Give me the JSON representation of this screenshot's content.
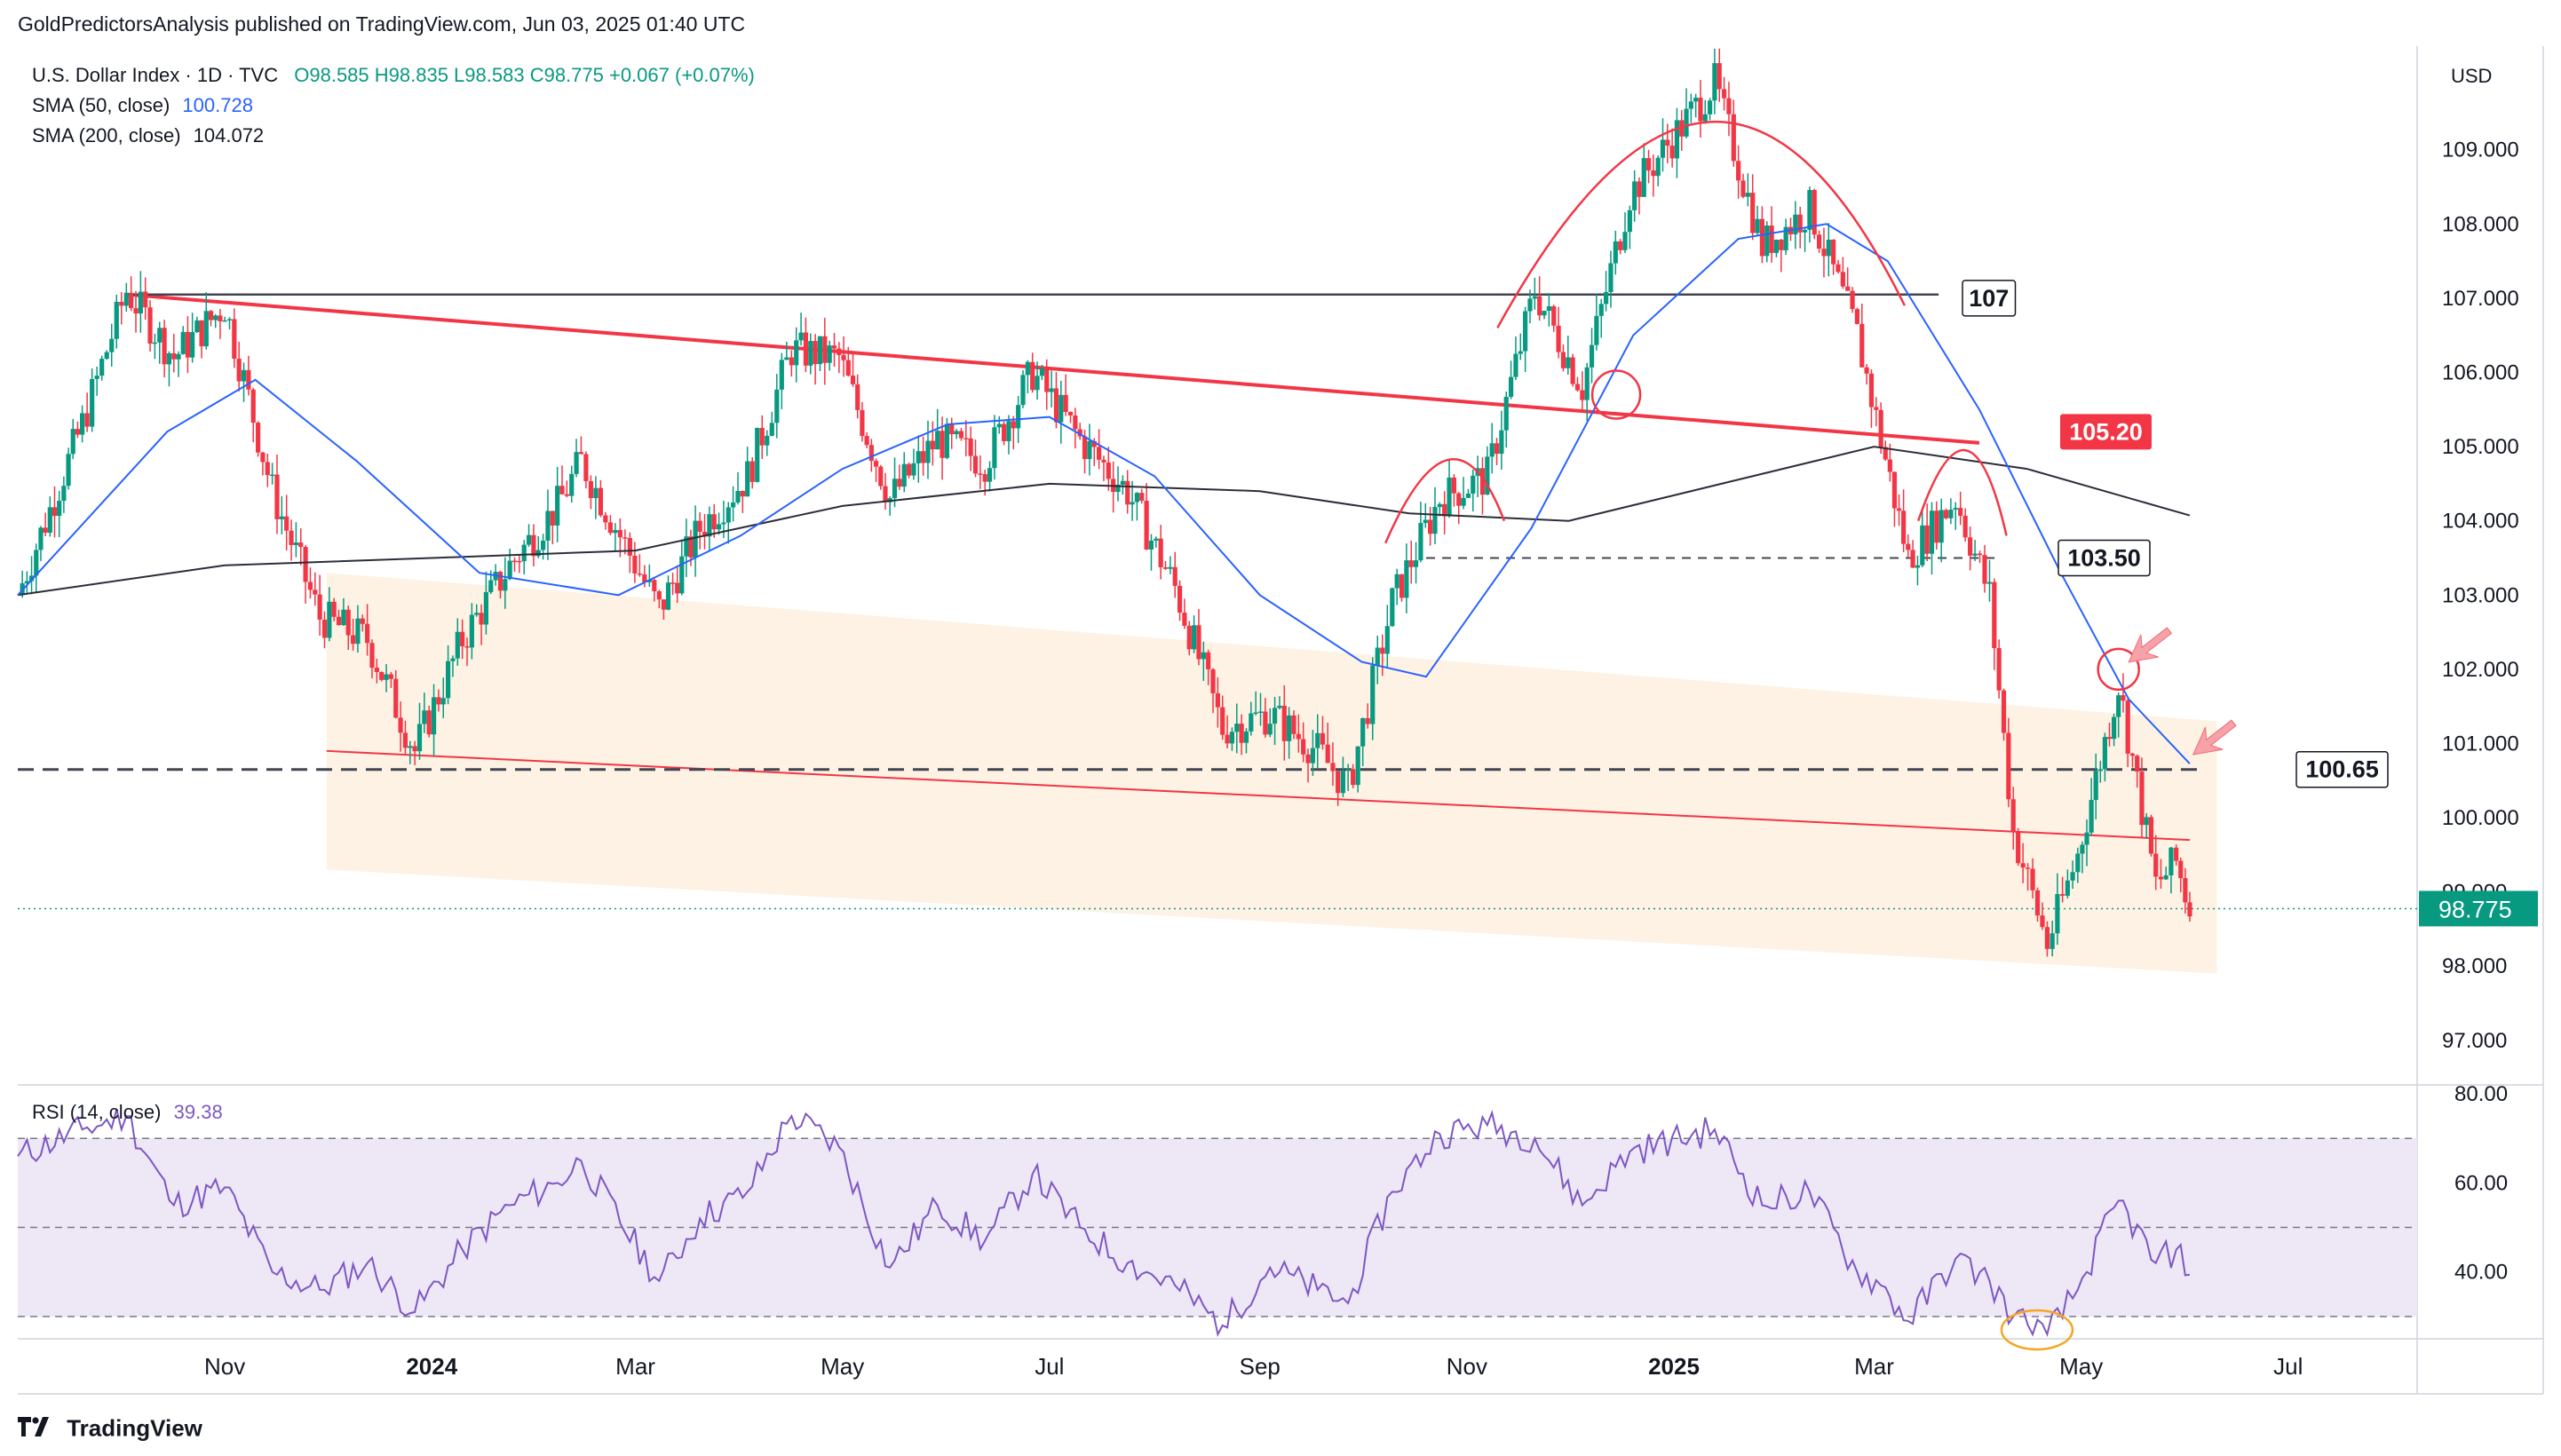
{
  "publisher_line": "GoldPredictorsAnalysis published on TradingView.com, Jun 03, 2025 01:40 UTC",
  "legend": {
    "symbol": "U.S. Dollar Index · 1D · TVC",
    "ohlc": "O98.585  H98.835  L98.583  C98.775  +0.067 (+0.07%)",
    "sma50_label": "SMA (50, close)",
    "sma50_value": "100.728",
    "sma200_label": "SMA (200, close)",
    "sma200_value": "104.072"
  },
  "rsi_legend": {
    "label": "RSI (14, close)",
    "value": "39.38"
  },
  "footer": {
    "brand": "TradingView",
    "logo_icon": "tradingview-logo-icon"
  },
  "colors": {
    "up": "#089981",
    "down": "#f23645",
    "sma50": "#2962ff",
    "sma200": "#2a2e39",
    "rsi": "#7e57c2",
    "trend_red": "#f23645",
    "channel": "#fdf1e1",
    "rsi_band": "#ede7f6"
  },
  "chart_data": [
    {
      "type": "candlestick",
      "title": "U.S. Dollar Index · 1D · TVC",
      "currency": "USD",
      "ylim": [
        96.4,
        110.3
      ],
      "yticks": [
        "109.000",
        "108.000",
        "107.000",
        "106.000",
        "105.000",
        "104.000",
        "103.000",
        "102.000",
        "101.000",
        "100.000",
        "99.000",
        "98.000",
        "97.000"
      ],
      "x_ticks": [
        {
          "label": "Nov",
          "date": "2023-11-01",
          "bold": false
        },
        {
          "label": "2024",
          "date": "2024-01-01",
          "bold": true
        },
        {
          "label": "Mar",
          "date": "2024-03-01",
          "bold": false
        },
        {
          "label": "May",
          "date": "2024-05-01",
          "bold": false
        },
        {
          "label": "Jul",
          "date": "2024-07-01",
          "bold": false
        },
        {
          "label": "Sep",
          "date": "2024-09-01",
          "bold": false
        },
        {
          "label": "Nov",
          "date": "2024-11-01",
          "bold": false
        },
        {
          "label": "2025",
          "date": "2025-01-01",
          "bold": true
        },
        {
          "label": "Mar",
          "date": "2025-03-01",
          "bold": false
        },
        {
          "label": "May",
          "date": "2025-05-01",
          "bold": false
        },
        {
          "label": "Jul",
          "date": "2025-07-01",
          "bold": false
        }
      ],
      "last_price": {
        "value": 98.775,
        "label": "98.775"
      },
      "price_path": [
        {
          "date": "2023-09-01",
          "close": 103.0
        },
        {
          "date": "2023-09-20",
          "close": 105.3
        },
        {
          "date": "2023-10-03",
          "close": 107.1
        },
        {
          "date": "2023-10-17",
          "close": 106.2
        },
        {
          "date": "2023-11-01",
          "close": 106.9
        },
        {
          "date": "2023-11-15",
          "close": 104.4
        },
        {
          "date": "2023-11-29",
          "close": 102.7
        },
        {
          "date": "2023-12-13",
          "close": 102.4
        },
        {
          "date": "2023-12-27",
          "close": 100.9
        },
        {
          "date": "2024-01-10",
          "close": 102.4
        },
        {
          "date": "2024-01-24",
          "close": 103.4
        },
        {
          "date": "2024-02-07",
          "close": 104.2
        },
        {
          "date": "2024-02-14",
          "close": 104.8
        },
        {
          "date": "2024-03-08",
          "close": 102.8
        },
        {
          "date": "2024-03-20",
          "close": 103.9
        },
        {
          "date": "2024-04-03",
          "close": 104.6
        },
        {
          "date": "2024-04-16",
          "close": 106.3
        },
        {
          "date": "2024-04-30",
          "close": 106.2
        },
        {
          "date": "2024-05-15",
          "close": 104.3
        },
        {
          "date": "2024-05-29",
          "close": 105.1
        },
        {
          "date": "2024-06-12",
          "close": 104.8
        },
        {
          "date": "2024-06-26",
          "close": 106.0
        },
        {
          "date": "2024-07-10",
          "close": 105.1
        },
        {
          "date": "2024-07-24",
          "close": 104.4
        },
        {
          "date": "2024-08-07",
          "close": 103.1
        },
        {
          "date": "2024-08-21",
          "close": 101.2
        },
        {
          "date": "2024-09-04",
          "close": 101.4
        },
        {
          "date": "2024-09-18",
          "close": 100.9
        },
        {
          "date": "2024-09-27",
          "close": 100.4
        },
        {
          "date": "2024-10-10",
          "close": 102.9
        },
        {
          "date": "2024-10-24",
          "close": 104.3
        },
        {
          "date": "2024-11-07",
          "close": 104.6
        },
        {
          "date": "2024-11-21",
          "close": 107.1
        },
        {
          "date": "2024-12-05",
          "close": 105.8
        },
        {
          "date": "2024-12-19",
          "close": 108.4
        },
        {
          "date": "2025-01-13",
          "close": 109.9
        },
        {
          "date": "2025-01-27",
          "close": 107.7
        },
        {
          "date": "2025-02-10",
          "close": 108.2
        },
        {
          "date": "2025-02-24",
          "close": 106.5
        },
        {
          "date": "2025-03-03",
          "close": 105.1
        },
        {
          "date": "2025-03-11",
          "close": 103.5
        },
        {
          "date": "2025-03-25",
          "close": 104.3
        },
        {
          "date": "2025-04-04",
          "close": 103.0
        },
        {
          "date": "2025-04-11",
          "close": 99.8
        },
        {
          "date": "2025-04-21",
          "close": 98.3
        },
        {
          "date": "2025-04-30",
          "close": 99.5
        },
        {
          "date": "2025-05-12",
          "close": 101.8
        },
        {
          "date": "2025-05-23",
          "close": 99.1
        },
        {
          "date": "2025-05-29",
          "close": 99.4
        },
        {
          "date": "2025-06-02",
          "close": 98.775
        }
      ],
      "sma50": [
        {
          "date": "2023-09-01",
          "value": 103.0
        },
        {
          "date": "2023-10-15",
          "value": 105.2
        },
        {
          "date": "2023-11-10",
          "value": 105.9
        },
        {
          "date": "2023-12-10",
          "value": 104.8
        },
        {
          "date": "2024-01-15",
          "value": 103.3
        },
        {
          "date": "2024-02-25",
          "value": 103.0
        },
        {
          "date": "2024-04-01",
          "value": 103.8
        },
        {
          "date": "2024-05-01",
          "value": 104.7
        },
        {
          "date": "2024-06-01",
          "value": 105.3
        },
        {
          "date": "2024-07-01",
          "value": 105.4
        },
        {
          "date": "2024-08-01",
          "value": 104.6
        },
        {
          "date": "2024-09-01",
          "value": 103.0
        },
        {
          "date": "2024-10-01",
          "value": 102.1
        },
        {
          "date": "2024-10-20",
          "value": 101.9
        },
        {
          "date": "2024-11-20",
          "value": 103.9
        },
        {
          "date": "2024-12-20",
          "value": 106.5
        },
        {
          "date": "2025-01-20",
          "value": 107.8
        },
        {
          "date": "2025-02-15",
          "value": 108.0
        },
        {
          "date": "2025-03-05",
          "value": 107.5
        },
        {
          "date": "2025-04-01",
          "value": 105.5
        },
        {
          "date": "2025-04-25",
          "value": 103.3
        },
        {
          "date": "2025-05-15",
          "value": 101.6
        },
        {
          "date": "2025-06-02",
          "value": 100.728
        }
      ],
      "sma200": [
        {
          "date": "2023-09-01",
          "value": 103.0
        },
        {
          "date": "2023-11-01",
          "value": 103.4
        },
        {
          "date": "2024-01-01",
          "value": 103.5
        },
        {
          "date": "2024-03-01",
          "value": 103.6
        },
        {
          "date": "2024-05-01",
          "value": 104.2
        },
        {
          "date": "2024-07-01",
          "value": 104.5
        },
        {
          "date": "2024-09-01",
          "value": 104.4
        },
        {
          "date": "2024-10-15",
          "value": 104.1
        },
        {
          "date": "2024-12-01",
          "value": 104.0
        },
        {
          "date": "2025-01-15",
          "value": 104.5
        },
        {
          "date": "2025-03-01",
          "value": 105.0
        },
        {
          "date": "2025-04-15",
          "value": 104.7
        },
        {
          "date": "2025-06-02",
          "value": 104.072
        }
      ],
      "annotations": [
        {
          "kind": "level",
          "value": 107,
          "label": "107"
        },
        {
          "kind": "label",
          "value": 105.2,
          "label": "105.20"
        },
        {
          "kind": "level",
          "value": 103.5,
          "label": "103.50"
        },
        {
          "kind": "level",
          "value": 100.65,
          "label": "100.65"
        }
      ],
      "trendlines": [
        {
          "name": "descending-resistance",
          "from": {
            "date": "2023-10-03",
            "value": 107.05
          },
          "to": {
            "date": "2025-04-01",
            "value": 105.05
          }
        },
        {
          "name": "channel-lower",
          "from": {
            "date": "2023-12-01",
            "value": 100.9
          },
          "to": {
            "date": "2025-06-02",
            "value": 99.7
          }
        }
      ],
      "channel": {
        "top_from": {
          "date": "2023-12-01",
          "value": 103.3
        },
        "top_to": {
          "date": "2025-06-10",
          "value": 101.3
        },
        "bottom_from": {
          "date": "2023-12-01",
          "value": 99.3
        },
        "bottom_to": {
          "date": "2025-06-10",
          "value": 97.9
        }
      }
    },
    {
      "type": "line",
      "title": "RSI (14, close)",
      "ylim": [
        25,
        82
      ],
      "yticks": [
        "80.00",
        "60.00",
        "40.00"
      ],
      "bands": [
        70,
        50,
        30
      ],
      "values": [
        {
          "date": "2023-09-01",
          "value": 66
        },
        {
          "date": "2023-09-20",
          "value": 72
        },
        {
          "date": "2023-10-03",
          "value": 75
        },
        {
          "date": "2023-10-17",
          "value": 55
        },
        {
          "date": "2023-11-01",
          "value": 59
        },
        {
          "date": "2023-11-15",
          "value": 40
        },
        {
          "date": "2023-11-29",
          "value": 36
        },
        {
          "date": "2023-12-13",
          "value": 42
        },
        {
          "date": "2023-12-27",
          "value": 31
        },
        {
          "date": "2024-01-10",
          "value": 45
        },
        {
          "date": "2024-01-24",
          "value": 55
        },
        {
          "date": "2024-02-07",
          "value": 60
        },
        {
          "date": "2024-02-14",
          "value": 65
        },
        {
          "date": "2024-03-08",
          "value": 38
        },
        {
          "date": "2024-03-20",
          "value": 52
        },
        {
          "date": "2024-04-03",
          "value": 58
        },
        {
          "date": "2024-04-16",
          "value": 75
        },
        {
          "date": "2024-04-30",
          "value": 68
        },
        {
          "date": "2024-05-15",
          "value": 41
        },
        {
          "date": "2024-05-29",
          "value": 55
        },
        {
          "date": "2024-06-12",
          "value": 47
        },
        {
          "date": "2024-06-26",
          "value": 62
        },
        {
          "date": "2024-07-10",
          "value": 50
        },
        {
          "date": "2024-07-24",
          "value": 42
        },
        {
          "date": "2024-08-07",
          "value": 37
        },
        {
          "date": "2024-08-21",
          "value": 28
        },
        {
          "date": "2024-09-04",
          "value": 41
        },
        {
          "date": "2024-09-18",
          "value": 36
        },
        {
          "date": "2024-09-27",
          "value": 33
        },
        {
          "date": "2024-10-10",
          "value": 58
        },
        {
          "date": "2024-10-24",
          "value": 71
        },
        {
          "date": "2024-11-07",
          "value": 73
        },
        {
          "date": "2024-11-21",
          "value": 70
        },
        {
          "date": "2024-12-05",
          "value": 55
        },
        {
          "date": "2024-12-19",
          "value": 67
        },
        {
          "date": "2025-01-13",
          "value": 72
        },
        {
          "date": "2025-01-27",
          "value": 55
        },
        {
          "date": "2025-02-10",
          "value": 58
        },
        {
          "date": "2025-02-24",
          "value": 40
        },
        {
          "date": "2025-03-03",
          "value": 37
        },
        {
          "date": "2025-03-11",
          "value": 29
        },
        {
          "date": "2025-03-25",
          "value": 43
        },
        {
          "date": "2025-04-04",
          "value": 38
        },
        {
          "date": "2025-04-11",
          "value": 30
        },
        {
          "date": "2025-04-21",
          "value": 26
        },
        {
          "date": "2025-04-30",
          "value": 36
        },
        {
          "date": "2025-05-12",
          "value": 56
        },
        {
          "date": "2025-05-23",
          "value": 42
        },
        {
          "date": "2025-05-29",
          "value": 45
        },
        {
          "date": "2025-06-02",
          "value": 39.38
        }
      ]
    }
  ]
}
